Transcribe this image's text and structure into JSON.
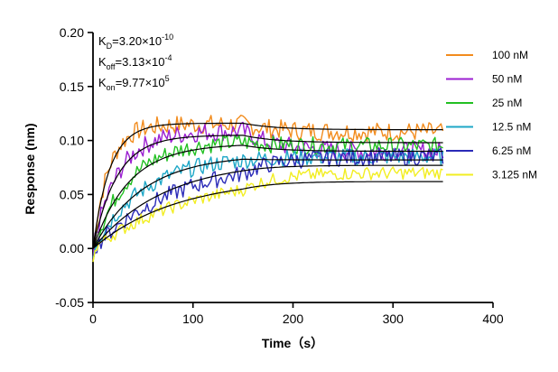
{
  "chart_data": {
    "type": "line",
    "title": "",
    "xlabel": "Time（s）",
    "ylabel": "Response (nm)",
    "xlim": [
      0,
      400
    ],
    "ylim": [
      -0.05,
      0.2
    ],
    "xticks": [
      0,
      100,
      200,
      300,
      400
    ],
    "yticks": [
      -0.05,
      0.0,
      0.05,
      0.1,
      0.15,
      0.2
    ],
    "xtick_labels": [
      "0",
      "100",
      "200",
      "300",
      "400"
    ],
    "ytick_labels": [
      "-0.05",
      "0.00",
      "0.05",
      "0.10",
      "0.15",
      "0.20"
    ],
    "grid": false,
    "legend_position": "right",
    "kinetics": [
      {
        "symbol": "K",
        "sub": "D",
        "value": "=3.20×10",
        "exp": "-10"
      },
      {
        "symbol": "K",
        "sub": "off",
        "value": "=3.13×10",
        "exp": "-4"
      },
      {
        "symbol": "K",
        "sub": "on",
        "value": "=9.77×10",
        "exp": "5"
      }
    ],
    "association_end": 150,
    "end_time": 350,
    "series": [
      {
        "name": "100 nM",
        "color": "#f28c1e",
        "plateau": 0.115,
        "k": 0.065,
        "end": 0.108,
        "noise": 0.009
      },
      {
        "name": "50 nM",
        "color": "#9b1fd1",
        "plateau": 0.109,
        "k": 0.04,
        "end": 0.09,
        "noise": 0.009
      },
      {
        "name": "25 nM",
        "color": "#22c022",
        "plateau": 0.1,
        "k": 0.028,
        "end": 0.095,
        "noise": 0.008
      },
      {
        "name": "12.5 nM",
        "color": "#1ea7c7",
        "plateau": 0.086,
        "k": 0.02,
        "end": 0.085,
        "noise": 0.008
      },
      {
        "name": "6.25 nM",
        "color": "#2b2bb8",
        "plateau": 0.083,
        "k": 0.012,
        "end": 0.085,
        "noise": 0.008
      },
      {
        "name": "3.125 nM",
        "color": "#f2ee22",
        "plateau": 0.07,
        "k": 0.01,
        "end": 0.07,
        "noise": 0.006
      }
    ],
    "fits": [
      {
        "plateau": 0.116,
        "k": 0.06,
        "end": 0.11
      },
      {
        "plateau": 0.105,
        "k": 0.042,
        "end": 0.098
      },
      {
        "plateau": 0.097,
        "k": 0.028,
        "end": 0.09
      },
      {
        "plateau": 0.087,
        "k": 0.02,
        "end": 0.082
      },
      {
        "plateau": 0.082,
        "k": 0.014,
        "end": 0.077
      },
      {
        "plateau": 0.066,
        "k": 0.012,
        "end": 0.062
      }
    ]
  }
}
